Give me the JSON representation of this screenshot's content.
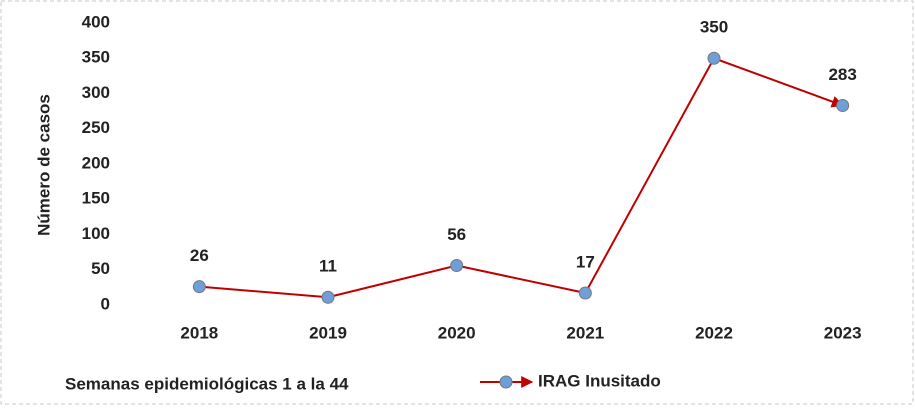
{
  "chart_data": {
    "type": "line",
    "ylabel": "Número de casos",
    "xlabel": "Semanas epidemiológicas 1 a la 44",
    "categories": [
      "2018",
      "2019",
      "2020",
      "2021",
      "2022",
      "2023"
    ],
    "series": [
      {
        "name": "IRAG Inusitado",
        "color": "#c00000",
        "marker_color": "#6f9fd8",
        "values": [
          26,
          11,
          56,
          17,
          350,
          283
        ]
      }
    ],
    "ylim": [
      0,
      400
    ],
    "yticks": [
      0,
      50,
      100,
      150,
      200,
      250,
      300,
      350,
      400
    ],
    "data_labels": true
  }
}
